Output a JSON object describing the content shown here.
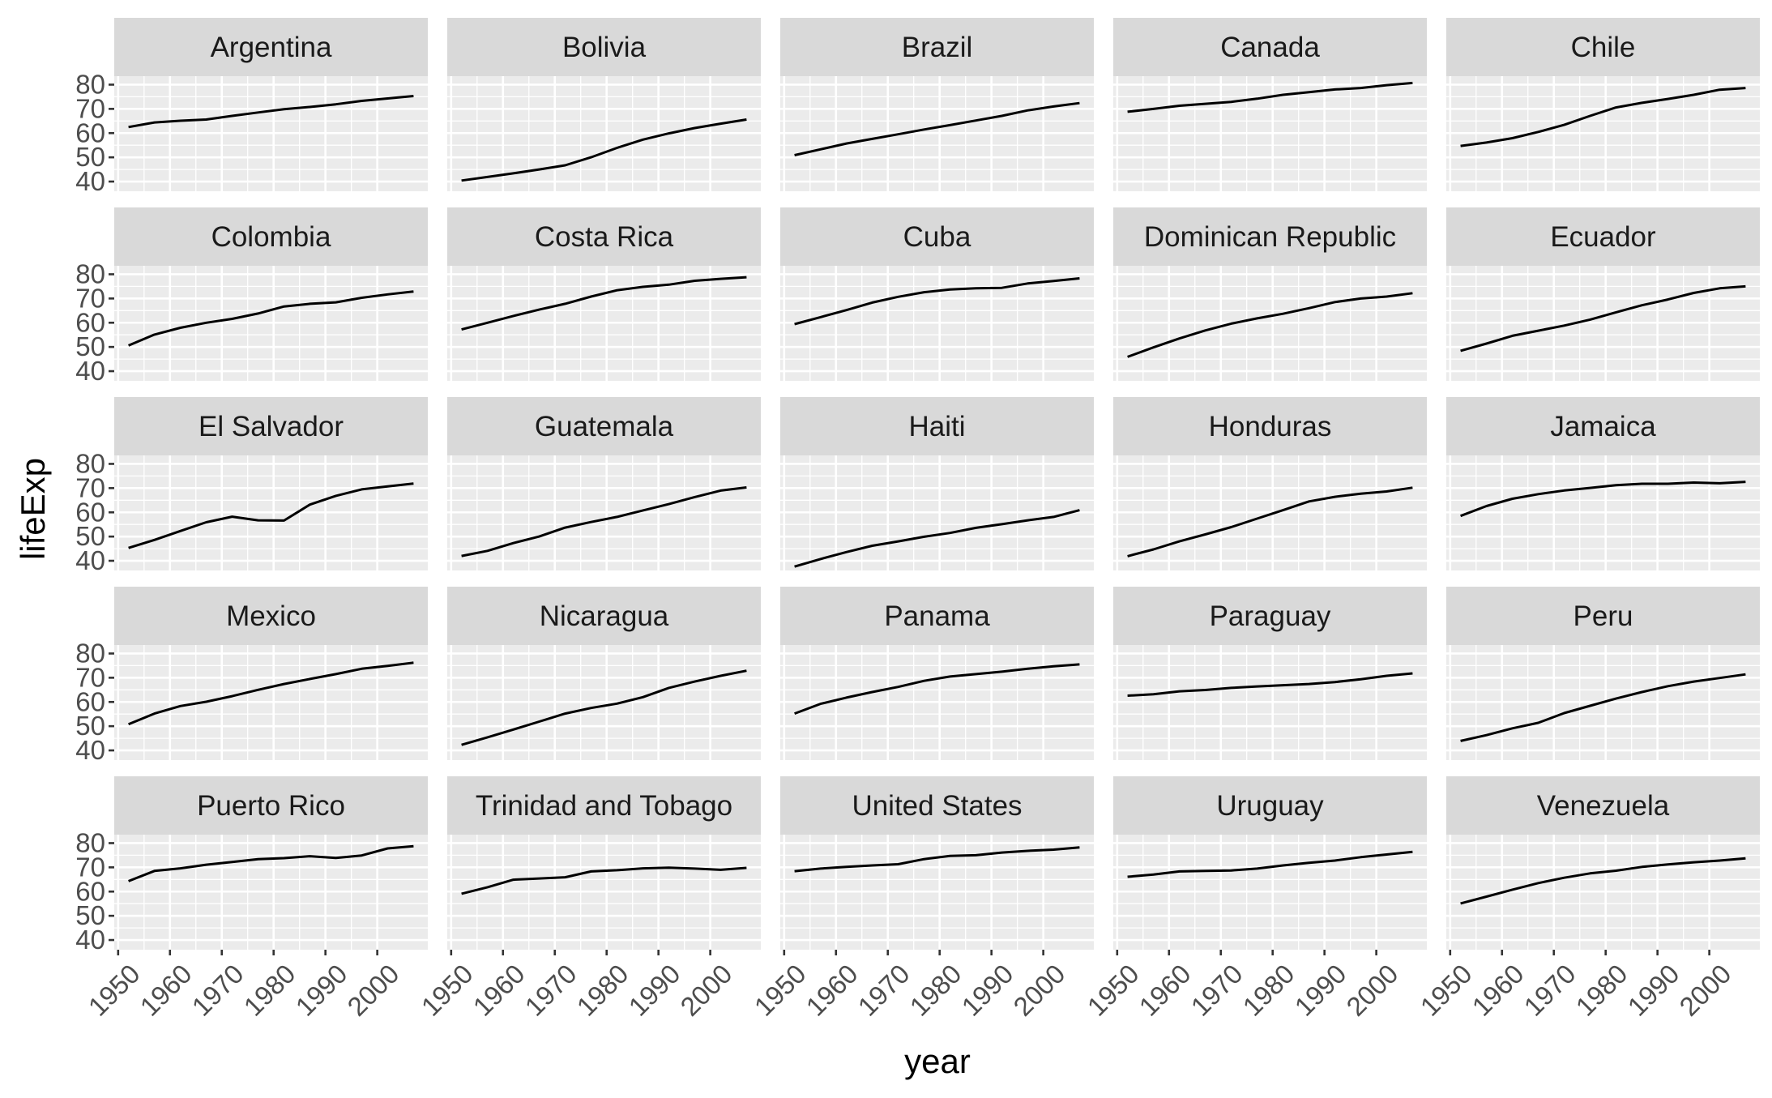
{
  "chart_data": {
    "type": "line",
    "layout": "facet_wrap",
    "title": "",
    "xlabel": "year",
    "ylabel": "lifeExp",
    "x": [
      1952,
      1957,
      1962,
      1967,
      1972,
      1977,
      1982,
      1987,
      1992,
      1997,
      2002,
      2007
    ],
    "xlim": [
      1949.25,
      2009.75
    ],
    "ylim": [
      36,
      83.5
    ],
    "x_ticks": [
      1950,
      1960,
      1970,
      1980,
      1990,
      2000
    ],
    "x_tick_labels": [
      "1950",
      "1960",
      "1970",
      "1980",
      "1990",
      "2000"
    ],
    "y_ticks": [
      40,
      50,
      60,
      70,
      80
    ],
    "y_tick_labels": [
      "40",
      "50",
      "60",
      "70",
      "80"
    ],
    "line_color": "#000000",
    "panel_background": "#ebebeb",
    "strip_background": "#d9d9d9",
    "grid": true,
    "series": [
      {
        "name": "Argentina",
        "values": [
          62.5,
          64.4,
          65.1,
          65.6,
          67.1,
          68.5,
          69.9,
          70.8,
          71.9,
          73.3,
          74.3,
          75.3
        ]
      },
      {
        "name": "Bolivia",
        "values": [
          40.4,
          41.9,
          43.4,
          45.0,
          46.7,
          50.0,
          53.9,
          57.3,
          59.9,
          62.1,
          63.9,
          65.6
        ]
      },
      {
        "name": "Brazil",
        "values": [
          50.9,
          53.3,
          55.7,
          57.6,
          59.5,
          61.5,
          63.3,
          65.2,
          67.1,
          69.4,
          71.0,
          72.4
        ]
      },
      {
        "name": "Canada",
        "values": [
          68.8,
          70.0,
          71.3,
          72.1,
          72.9,
          74.2,
          75.8,
          76.9,
          78.0,
          78.6,
          79.8,
          80.7
        ]
      },
      {
        "name": "Chile",
        "values": [
          54.7,
          56.1,
          57.9,
          60.5,
          63.4,
          67.1,
          70.6,
          72.5,
          74.1,
          75.8,
          77.9,
          78.6
        ]
      },
      {
        "name": "Colombia",
        "values": [
          50.6,
          55.1,
          57.9,
          60.0,
          61.6,
          63.8,
          66.7,
          67.8,
          68.4,
          70.3,
          71.7,
          72.9
        ]
      },
      {
        "name": "Costa Rica",
        "values": [
          57.2,
          60.0,
          62.8,
          65.4,
          67.8,
          70.8,
          73.4,
          74.8,
          75.7,
          77.3,
          78.1,
          78.8
        ]
      },
      {
        "name": "Cuba",
        "values": [
          59.4,
          62.3,
          65.2,
          68.3,
          70.7,
          72.6,
          73.7,
          74.2,
          74.4,
          76.2,
          77.2,
          78.3
        ]
      },
      {
        "name": "Dominican Republic",
        "values": [
          45.9,
          49.8,
          53.5,
          56.8,
          59.6,
          61.8,
          63.7,
          66.0,
          68.5,
          70.0,
          70.8,
          72.2
        ]
      },
      {
        "name": "Ecuador",
        "values": [
          48.4,
          51.4,
          54.6,
          56.7,
          58.8,
          61.3,
          64.3,
          67.2,
          69.6,
          72.3,
          74.2,
          74.99
        ]
      },
      {
        "name": "El Salvador",
        "values": [
          45.3,
          48.6,
          52.3,
          55.9,
          58.2,
          56.7,
          56.6,
          63.2,
          66.8,
          69.5,
          70.7,
          71.9
        ]
      },
      {
        "name": "Guatemala",
        "values": [
          42.0,
          44.1,
          47.3,
          50.0,
          53.7,
          56.0,
          58.1,
          60.8,
          63.4,
          66.3,
          68.98,
          70.3
        ]
      },
      {
        "name": "Haiti",
        "values": [
          37.6,
          40.7,
          43.6,
          46.2,
          48.0,
          49.9,
          51.5,
          53.6,
          55.1,
          56.7,
          58.1,
          60.9
        ]
      },
      {
        "name": "Honduras",
        "values": [
          41.9,
          44.7,
          48.0,
          50.9,
          53.9,
          57.4,
          60.9,
          64.5,
          66.4,
          67.7,
          68.6,
          70.2
        ]
      },
      {
        "name": "Jamaica",
        "values": [
          58.5,
          62.6,
          65.6,
          67.5,
          69.0,
          70.1,
          71.2,
          71.8,
          71.8,
          72.3,
          72.0,
          72.6
        ]
      },
      {
        "name": "Mexico",
        "values": [
          50.8,
          55.2,
          58.3,
          60.1,
          62.4,
          65.0,
          67.4,
          69.5,
          71.5,
          73.7,
          74.9,
          76.2
        ]
      },
      {
        "name": "Nicaragua",
        "values": [
          42.3,
          45.4,
          48.6,
          51.9,
          55.2,
          57.5,
          59.3,
          62.0,
          65.8,
          68.4,
          70.8,
          72.9
        ]
      },
      {
        "name": "Panama",
        "values": [
          55.2,
          59.2,
          61.8,
          64.1,
          66.2,
          68.7,
          70.5,
          71.5,
          72.5,
          73.7,
          74.7,
          75.5
        ]
      },
      {
        "name": "Paraguay",
        "values": [
          62.6,
          63.2,
          64.4,
          64.95,
          65.8,
          66.4,
          66.9,
          67.4,
          68.2,
          69.4,
          70.8,
          71.8
        ]
      },
      {
        "name": "Peru",
        "values": [
          43.9,
          46.3,
          49.1,
          51.4,
          55.4,
          58.4,
          61.4,
          64.1,
          66.5,
          68.4,
          69.9,
          71.4
        ]
      },
      {
        "name": "Puerto Rico",
        "values": [
          64.3,
          68.5,
          69.6,
          71.1,
          72.2,
          73.4,
          73.8,
          74.6,
          73.9,
          74.9,
          77.8,
          78.7
        ]
      },
      {
        "name": "Trinidad and Tobago",
        "values": [
          59.1,
          61.8,
          64.9,
          65.4,
          65.9,
          68.3,
          68.8,
          69.6,
          69.9,
          69.5,
          68.98,
          69.8
        ]
      },
      {
        "name": "United States",
        "values": [
          68.4,
          69.5,
          70.2,
          70.8,
          71.3,
          73.4,
          74.7,
          75.0,
          76.1,
          76.8,
          77.3,
          78.2
        ]
      },
      {
        "name": "Uruguay",
        "values": [
          66.1,
          67.0,
          68.3,
          68.5,
          68.7,
          69.5,
          70.8,
          71.9,
          72.8,
          74.2,
          75.3,
          76.4
        ]
      },
      {
        "name": "Venezuela",
        "values": [
          55.1,
          57.9,
          60.8,
          63.5,
          65.7,
          67.5,
          68.6,
          70.2,
          71.2,
          72.1,
          72.8,
          73.7
        ]
      }
    ]
  }
}
